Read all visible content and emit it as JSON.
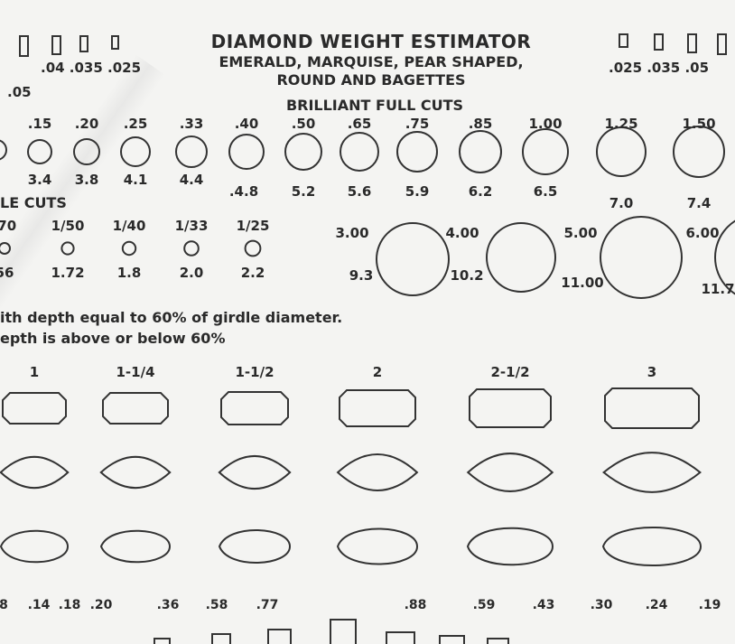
{
  "header": {
    "title": "DIAMOND WEIGHT ESTIMATOR",
    "subtitle_1": "EMERALD, MARQUISE, PEAR SHAPED,",
    "subtitle_2": "ROUND AND BAGETTES",
    "section_brilliant": "BRILLIANT FULL CUTS"
  },
  "baguettes_left": {
    "labels": [
      ".04 .035 .025"
    ],
    "label_05": ".05"
  },
  "baguettes_right": {
    "labels": [
      ".025 .035 .05"
    ]
  },
  "brilliant": {
    "carats": [
      ".15",
      ".20",
      ".25",
      ".33",
      ".40",
      ".50",
      ".65",
      ".75",
      ".85",
      "1.00",
      "1.25",
      "1.50"
    ],
    "mm": [
      "3.4",
      "3.8",
      "4.1",
      "4.4",
      ".4.8",
      "5.2",
      "5.6",
      "5.9",
      "6.2",
      "6.5",
      "7.0",
      "7.4"
    ]
  },
  "single_cuts": {
    "heading": "LE CUTS",
    "carats": [
      "/70",
      "1/50",
      "1/40",
      "1/33",
      "1/25"
    ],
    "mm": [
      "56",
      "1.72",
      "1.8",
      "2.0",
      "2.2"
    ]
  },
  "large_rounds": {
    "carats": [
      "3.00",
      "4.00",
      "5.00",
      "6.00"
    ],
    "mm": [
      "9.3",
      "10.2",
      "11.00",
      "11.7"
    ]
  },
  "notes": {
    "line_1": "ith depth equal to 60% of girdle diameter.",
    "line_2": "epth is above or below 60%"
  },
  "fancy": {
    "carats": [
      "1",
      "1-1/4",
      "1-1/2",
      "2",
      "2-1/2",
      "3"
    ]
  },
  "bottom_row": {
    "values": [
      "8",
      ".14",
      ".18",
      ".20",
      ".36",
      ".58",
      ".77",
      ".88",
      ".59",
      ".43",
      ".30",
      ".24",
      ".19"
    ]
  }
}
